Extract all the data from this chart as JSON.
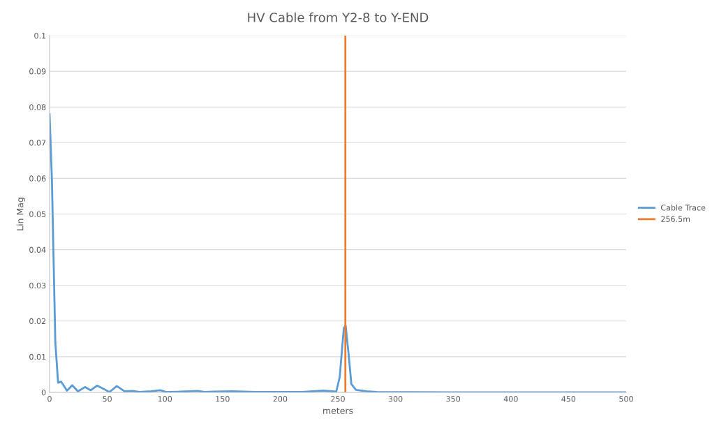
{
  "chart_data": {
    "type": "line",
    "title": "HV Cable from Y2-8 to Y-END",
    "xlabel": "meters",
    "ylabel": "Lin Mag",
    "series": [
      {
        "name": "Cable Trace",
        "color": "#5b9bd5",
        "x": [
          0,
          2,
          5,
          7.4,
          10.1,
          15.1,
          19.6,
          24.6,
          30.7,
          35.7,
          41.2,
          46.8,
          51.9,
          58.3,
          65,
          72,
          78,
          88,
          96,
          101.5,
          113.5,
          121.5,
          128.5,
          134.5,
          142,
          158.6,
          179,
          219,
          237.5,
          248.6,
          251.6,
          253.6,
          255.2,
          256.7,
          259.3,
          261.7,
          265.7,
          274.8,
          283.6,
          350,
          420,
          500
        ],
        "values": [
          0.078,
          0.06,
          0.014,
          0.0027,
          0.003,
          0.0005,
          0.002,
          0.0003,
          0.0015,
          0.0006,
          0.0019,
          0.001,
          0.0001,
          0.0018,
          0.0003,
          0.0004,
          0.0001,
          0.0003,
          0.0006,
          0.0001,
          0.0002,
          0.0003,
          0.0004,
          0.0001,
          0.0002,
          0.0003,
          0.0001,
          0.0001,
          0.0005,
          0.0002,
          0.0043,
          0.012,
          0.018,
          0.0188,
          0.0108,
          0.0023,
          0.0007,
          0.0003,
          0.0001,
          0,
          0,
          0
        ]
      },
      {
        "name": "256.5m",
        "color": "#ed7d31",
        "x": [
          256.5,
          256.5
        ],
        "values": [
          0,
          0.1
        ]
      }
    ],
    "xlim": [
      0,
      500
    ],
    "xticks": [
      0,
      50,
      100,
      150,
      200,
      250,
      300,
      350,
      400,
      450,
      500
    ],
    "ylim": [
      0,
      0.1
    ],
    "yticks": [
      0,
      0.01,
      0.02,
      0.03,
      0.04,
      0.05,
      0.06,
      0.07,
      0.08,
      0.09,
      0.1
    ],
    "grid": "y",
    "legend": "right"
  }
}
